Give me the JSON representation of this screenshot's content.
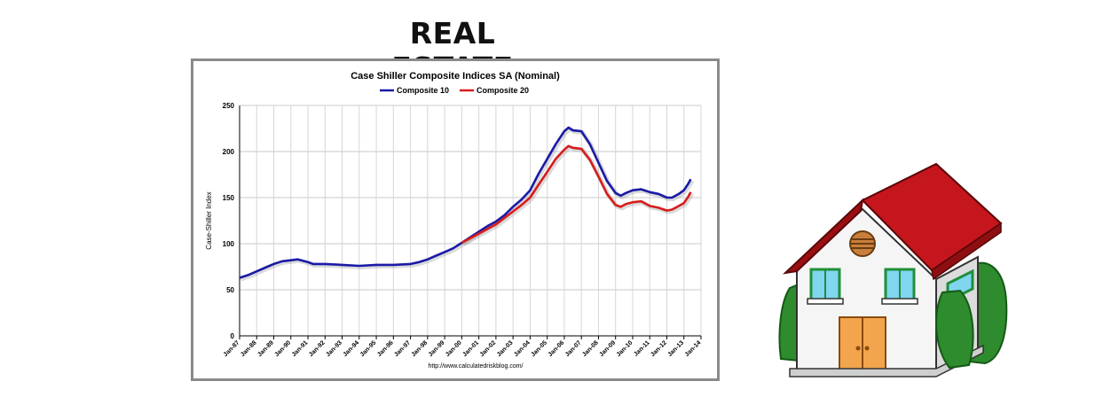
{
  "page": {
    "title": "REAL ESTATE"
  },
  "chart_data": {
    "type": "line",
    "title": "Case Shiller Composite Indices SA (Nominal)",
    "xlabel": "",
    "ylabel": "Case-Shiller Index",
    "source": "http://www.calculatedriskblog.com/",
    "ylim": [
      0,
      250
    ],
    "xlim": [
      1987.0,
      2014.0
    ],
    "yticks": [
      0,
      50,
      100,
      150,
      200,
      250
    ],
    "xticks": [
      "Jan-87",
      "Jan-88",
      "Jan-89",
      "Jan-90",
      "Jan-91",
      "Jan-92",
      "Jan-93",
      "Jan-94",
      "Jan-95",
      "Jan-96",
      "Jan-97",
      "Jan-98",
      "Jan-99",
      "Jan-00",
      "Jan-01",
      "Jan-02",
      "Jan-03",
      "Jan-04",
      "Jan-05",
      "Jan-06",
      "Jan-07",
      "Jan-08",
      "Jan-09",
      "Jan-10",
      "Jan-11",
      "Jan-12",
      "Jan-13",
      "Jan-14"
    ],
    "grid": true,
    "legend_position": "top",
    "series": [
      {
        "name": "Composite 10",
        "color": "#1a1aa6",
        "points": [
          [
            1987.0,
            63
          ],
          [
            1987.5,
            66
          ],
          [
            1988.0,
            70
          ],
          [
            1988.5,
            74
          ],
          [
            1989.0,
            78
          ],
          [
            1989.5,
            81
          ],
          [
            1990.0,
            82
          ],
          [
            1990.4,
            83
          ],
          [
            1990.8,
            81
          ],
          [
            1991.0,
            80
          ],
          [
            1991.3,
            78
          ],
          [
            1991.6,
            78
          ],
          [
            1992.0,
            78
          ],
          [
            1993.0,
            77
          ],
          [
            1994.0,
            76
          ],
          [
            1995.0,
            77
          ],
          [
            1996.0,
            77
          ],
          [
            1997.0,
            78
          ],
          [
            1997.5,
            80
          ],
          [
            1998.0,
            83
          ],
          [
            1998.5,
            87
          ],
          [
            1999.0,
            91
          ],
          [
            1999.5,
            95
          ],
          [
            2000.0,
            101
          ],
          [
            2000.5,
            107
          ],
          [
            2001.0,
            113
          ],
          [
            2001.5,
            119
          ],
          [
            2002.0,
            124
          ],
          [
            2002.5,
            131
          ],
          [
            2003.0,
            140
          ],
          [
            2003.5,
            148
          ],
          [
            2004.0,
            158
          ],
          [
            2004.5,
            176
          ],
          [
            2005.0,
            192
          ],
          [
            2005.5,
            208
          ],
          [
            2006.0,
            222
          ],
          [
            2006.25,
            226
          ],
          [
            2006.5,
            223
          ],
          [
            2007.0,
            222
          ],
          [
            2007.5,
            208
          ],
          [
            2008.0,
            188
          ],
          [
            2008.5,
            168
          ],
          [
            2009.0,
            155
          ],
          [
            2009.3,
            152
          ],
          [
            2009.6,
            155
          ],
          [
            2010.0,
            158
          ],
          [
            2010.5,
            159
          ],
          [
            2011.0,
            156
          ],
          [
            2011.5,
            154
          ],
          [
            2012.0,
            150
          ],
          [
            2012.3,
            150
          ],
          [
            2012.7,
            154
          ],
          [
            2013.0,
            158
          ],
          [
            2013.25,
            165
          ],
          [
            2013.4,
            170
          ]
        ]
      },
      {
        "name": "Composite 20",
        "color": "#d81c1c",
        "points": [
          [
            2000.0,
            101
          ],
          [
            2000.5,
            106
          ],
          [
            2001.0,
            111
          ],
          [
            2001.5,
            116
          ],
          [
            2002.0,
            121
          ],
          [
            2002.5,
            128
          ],
          [
            2003.0,
            135
          ],
          [
            2003.5,
            142
          ],
          [
            2004.0,
            150
          ],
          [
            2004.5,
            164
          ],
          [
            2005.0,
            178
          ],
          [
            2005.5,
            192
          ],
          [
            2006.0,
            202
          ],
          [
            2006.25,
            206
          ],
          [
            2006.5,
            204
          ],
          [
            2007.0,
            203
          ],
          [
            2007.5,
            191
          ],
          [
            2008.0,
            173
          ],
          [
            2008.5,
            154
          ],
          [
            2009.0,
            142
          ],
          [
            2009.3,
            140
          ],
          [
            2009.6,
            143
          ],
          [
            2010.0,
            145
          ],
          [
            2010.5,
            146
          ],
          [
            2011.0,
            141
          ],
          [
            2011.5,
            139
          ],
          [
            2012.0,
            136
          ],
          [
            2012.3,
            137
          ],
          [
            2012.7,
            141
          ],
          [
            2013.0,
            144
          ],
          [
            2013.25,
            151
          ],
          [
            2013.4,
            156
          ]
        ]
      }
    ]
  },
  "illustration": {
    "icon": "house-icon",
    "roof_color": "#c4161c",
    "wall_color": "#f4f4f4",
    "door_color": "#f2a54c",
    "window_color": "#7fd6ee",
    "tree_color": "#2e8b2e"
  }
}
